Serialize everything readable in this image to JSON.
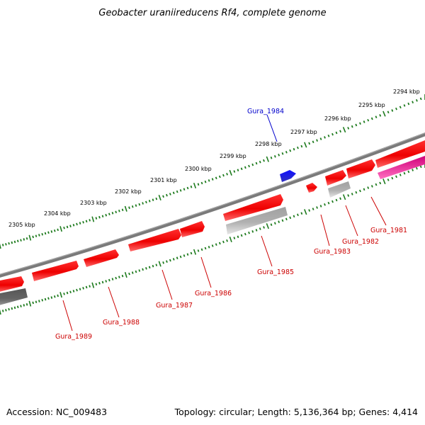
{
  "title": "Geobacter uraniireducens Rf4, complete genome",
  "footer": {
    "accession": "Accession: NC_009483",
    "summary": "Topology: circular; Length: 5,136,364 bp; Genes: 4,414"
  },
  "colors": {
    "forward_gene": "#ff0000",
    "reverse_gene": "#ff0000",
    "pseudo_gene": "#b8b8b8",
    "highlight_gene": "#0000ff",
    "pink_gene": "#ff1493",
    "backbone": "#808080",
    "tick": "#1e7b1e",
    "label_red": "#cc0000",
    "label_blue": "#0000cc"
  },
  "scale_ticks": [
    "2294 kbp",
    "2295 kbp",
    "2296 kbp",
    "2297 kbp",
    "2298 kbp",
    "2299 kbp",
    "2300 kbp",
    "2301 kbp",
    "2302 kbp",
    "2303 kbp",
    "2304 kbp",
    "2305 kbp"
  ],
  "gene_labels": [
    {
      "name": "Gura_1984",
      "color": "blue"
    },
    {
      "name": "Gura_1981",
      "color": "red"
    },
    {
      "name": "Gura_1982",
      "color": "red"
    },
    {
      "name": "Gura_1983",
      "color": "red"
    },
    {
      "name": "Gura_1985",
      "color": "red"
    },
    {
      "name": "Gura_1986",
      "color": "red"
    },
    {
      "name": "Gura_1987",
      "color": "red"
    },
    {
      "name": "Gura_1988",
      "color": "red"
    },
    {
      "name": "Gura_1989",
      "color": "red"
    }
  ]
}
